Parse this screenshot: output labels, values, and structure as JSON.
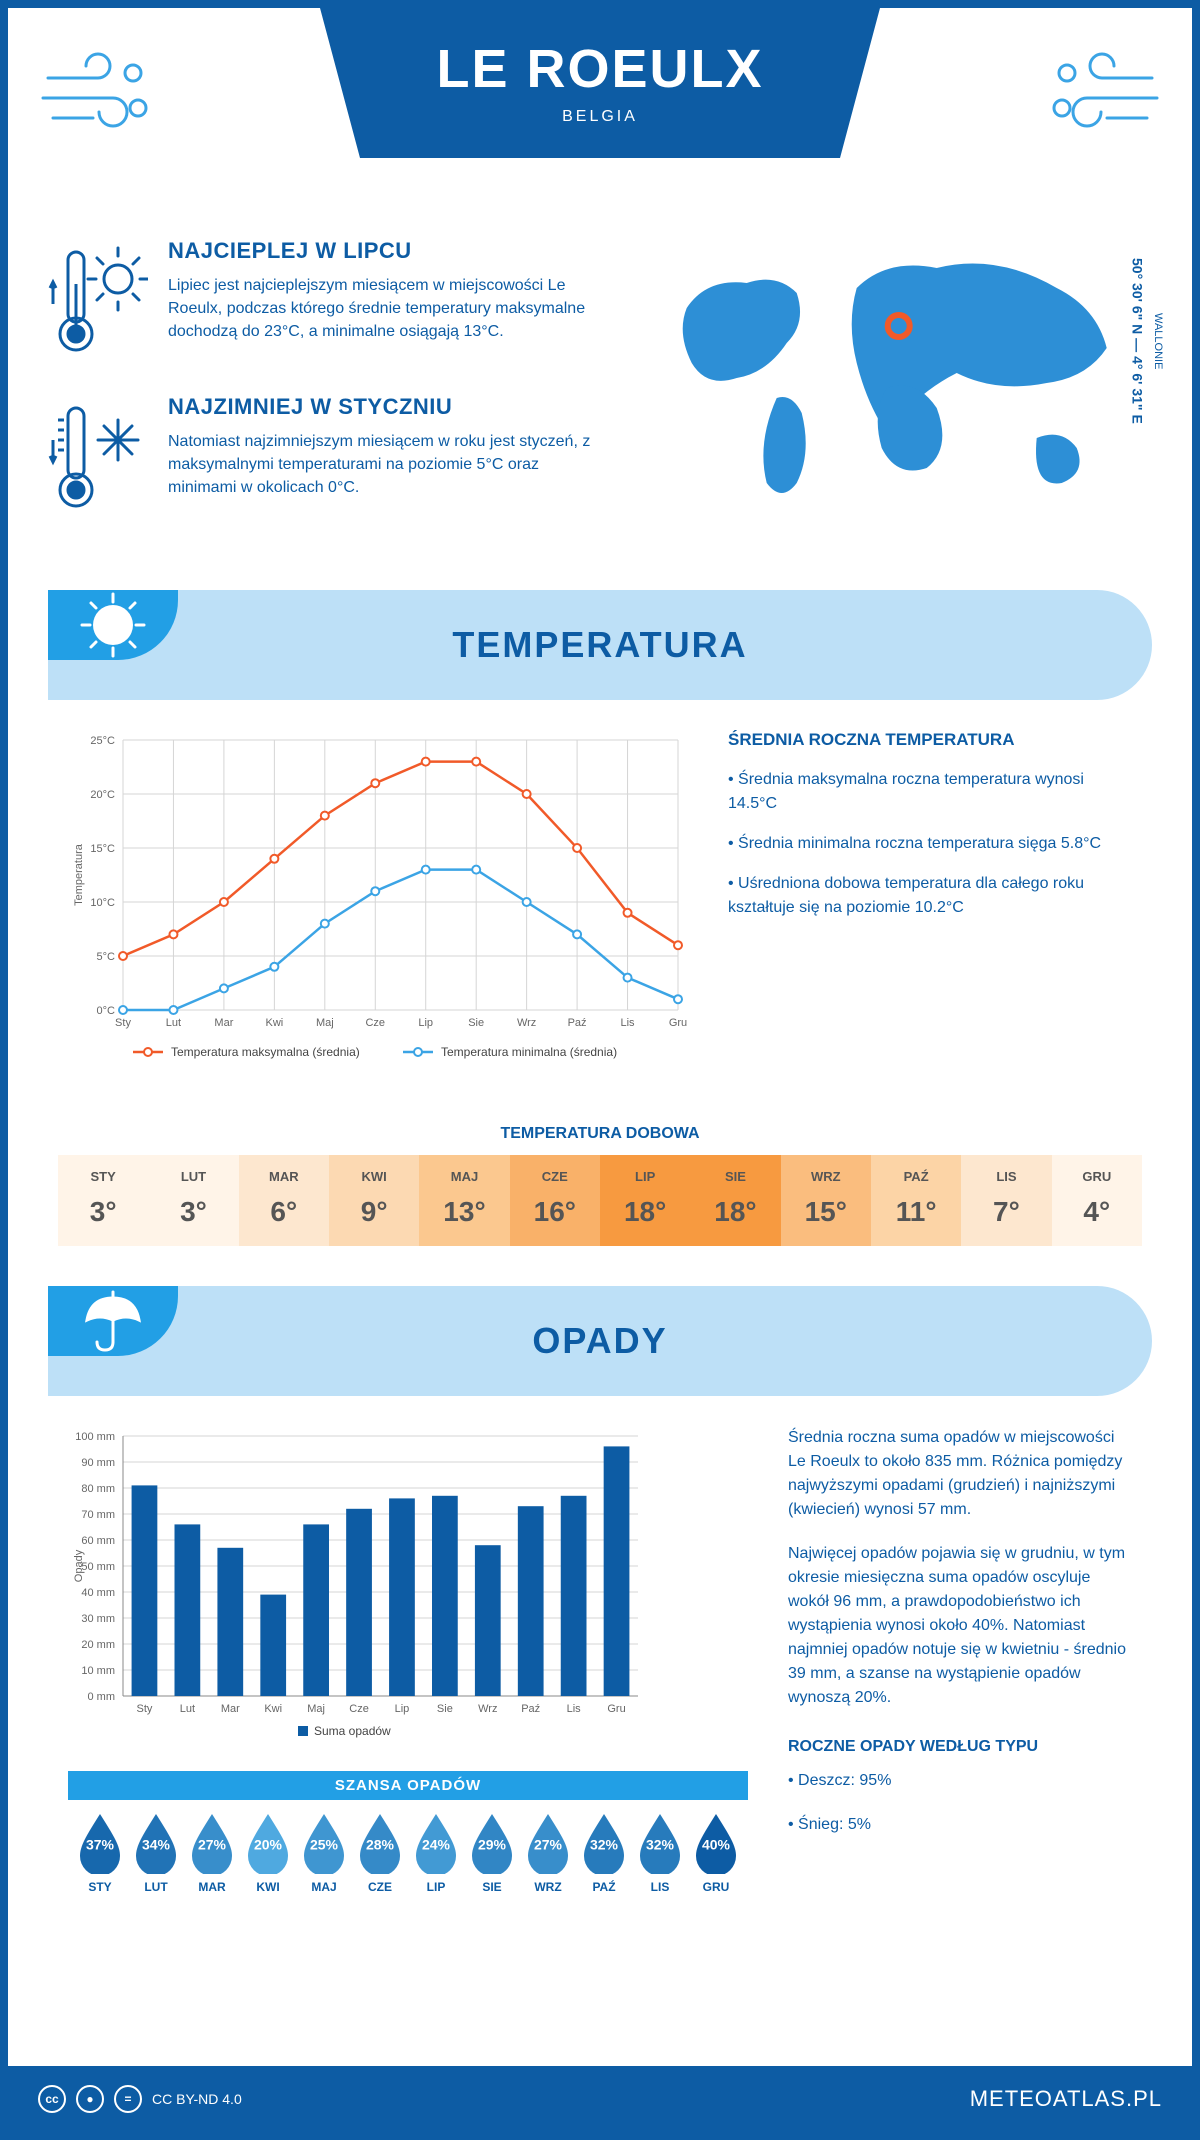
{
  "header": {
    "city": "LE ROEULX",
    "country": "BELGIA"
  },
  "coords": {
    "region": "WALLONIE",
    "lat": "50° 30' 6\" N",
    "lon": "4° 6' 31\" E"
  },
  "facts": {
    "hot": {
      "title": "NAJCIEPLEJ W LIPCU",
      "text": "Lipiec jest najcieplejszym miesiącem w miejscowości Le Roeulx, podczas którego średnie temperatury maksymalne dochodzą do 23°C, a minimalne osiągają 13°C."
    },
    "cold": {
      "title": "NAJZIMNIEJ W STYCZNIU",
      "text": "Natomiast najzimniejszym miesiącem w roku jest styczeń, z maksymalnymi temperaturami na poziomie 5°C oraz minimami w okolicach 0°C."
    }
  },
  "months_short": [
    "Sty",
    "Lut",
    "Mar",
    "Kwi",
    "Maj",
    "Cze",
    "Lip",
    "Sie",
    "Wrz",
    "Paź",
    "Lis",
    "Gru"
  ],
  "months_upper": [
    "STY",
    "LUT",
    "MAR",
    "KWI",
    "MAJ",
    "CZE",
    "LIP",
    "SIE",
    "WRZ",
    "PAŹ",
    "LIS",
    "GRU"
  ],
  "sections": {
    "temp": "TEMPERATURA",
    "precip": "OPADY"
  },
  "temp_chart": {
    "ylabel": "Temperatura",
    "ymin": 0,
    "ymax": 25,
    "ystep": 5,
    "yfmt": "°C",
    "max": [
      5,
      7,
      10,
      14,
      18,
      21,
      23,
      23,
      20,
      15,
      9,
      6
    ],
    "min": [
      0,
      0,
      2,
      4,
      8,
      11,
      13,
      13,
      10,
      7,
      3,
      1
    ],
    "color_max": "#f15a29",
    "color_min": "#3ba4e5",
    "grid_color": "#d5d5d5",
    "legend_max": "Temperatura maksymalna (średnia)",
    "legend_min": "Temperatura minimalna (średnia)"
  },
  "temp_stats": {
    "title": "ŚREDNIA ROCZNA TEMPERATURA",
    "b1": "• Średnia maksymalna roczna temperatura wynosi 14.5°C",
    "b2": "• Średnia minimalna roczna temperatura sięga 5.8°C",
    "b3": "• Uśredniona dobowa temperatura dla całego roku kształtuje się na poziomie 10.2°C"
  },
  "dobowa": {
    "title": "TEMPERATURA DOBOWA",
    "vals": [
      3,
      3,
      6,
      9,
      13,
      16,
      18,
      18,
      15,
      11,
      7,
      4
    ],
    "colors": [
      "#fff4e8",
      "#fff4e8",
      "#fde7cf",
      "#fcd9b2",
      "#fbc88f",
      "#f9b169",
      "#f79a40",
      "#f79a40",
      "#fabd7e",
      "#fcd4a6",
      "#fde7cf",
      "#fff4e8"
    ]
  },
  "prec_chart": {
    "ylabel": "Opady",
    "ymin": 0,
    "ymax": 100,
    "ystep": 10,
    "yfmt": " mm",
    "vals": [
      81,
      66,
      57,
      39,
      66,
      72,
      76,
      77,
      58,
      73,
      77,
      96
    ],
    "bar_color": "#0d5ca4",
    "legend": "Suma opadów"
  },
  "prec_stats": {
    "p1": "Średnia roczna suma opadów w miejscowości Le Roeulx to około 835 mm. Różnica pomiędzy najwyższymi opadami (grudzień) i najniższymi (kwiecień) wynosi 57 mm.",
    "p2": "Najwięcej opadów pojawia się w grudniu, w tym okresie miesięczna suma opadów oscyluje wokół 96 mm, a prawdopodobieństwo ich wystąpienia wynosi około 40%. Natomiast najmniej opadów notuje się w kwietniu - średnio 39 mm, a szanse na wystąpienie opadów wynoszą 20%.",
    "type_title": "ROCZNE OPADY WEDŁUG TYPU",
    "t1": "• Deszcz: 95%",
    "t2": "• Śnieg: 5%"
  },
  "chance": {
    "title": "SZANSA OPADÓW",
    "pct": [
      37,
      34,
      27,
      20,
      25,
      28,
      24,
      29,
      27,
      32,
      32,
      40
    ],
    "dark": "#0d5ca4",
    "light": "#4fa9e0"
  },
  "footer": {
    "license": "CC BY-ND 4.0",
    "site": "METEOATLAS.PL"
  }
}
